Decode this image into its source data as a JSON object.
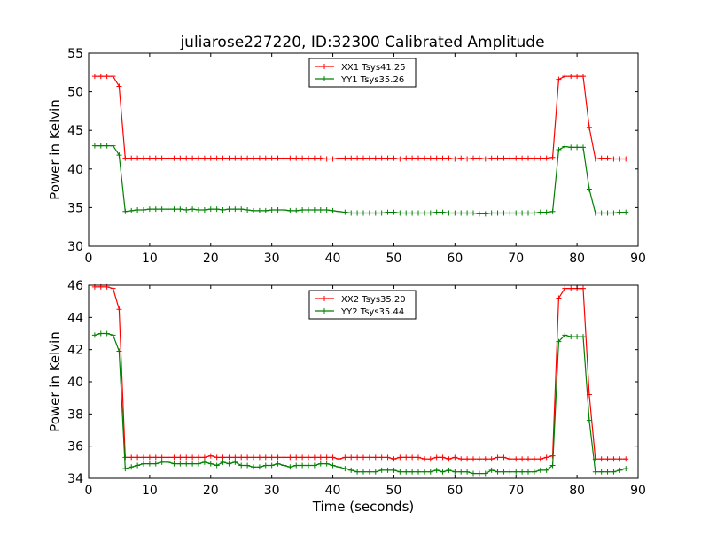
{
  "title": "juliarose227220, ID:32300 Calibrated Amplitude",
  "chart_data": [
    {
      "type": "line",
      "title": "juliarose227220, ID:32300 Calibrated Amplitude",
      "xlabel": "",
      "ylabel": "Power in Kelvin",
      "xlim": [
        0,
        90
      ],
      "ylim": [
        30,
        55
      ],
      "xticks": [
        "0",
        "10",
        "20",
        "30",
        "40",
        "50",
        "60",
        "70",
        "80",
        "90"
      ],
      "yticks": [
        "30",
        "35",
        "40",
        "45",
        "50",
        "55"
      ],
      "grid": false,
      "legend": "top-center",
      "x": [
        1,
        2,
        3,
        4,
        5,
        6,
        7,
        8,
        9,
        10,
        11,
        12,
        13,
        14,
        15,
        16,
        17,
        18,
        19,
        20,
        21,
        22,
        23,
        24,
        25,
        26,
        27,
        28,
        29,
        30,
        31,
        32,
        33,
        34,
        35,
        36,
        37,
        38,
        39,
        40,
        41,
        42,
        43,
        44,
        45,
        46,
        47,
        48,
        49,
        50,
        51,
        52,
        53,
        54,
        55,
        56,
        57,
        58,
        59,
        60,
        61,
        62,
        63,
        64,
        65,
        66,
        67,
        68,
        69,
        70,
        71,
        72,
        73,
        74,
        75,
        76,
        77,
        78,
        79,
        80,
        81,
        82,
        83,
        84,
        85,
        86,
        87,
        88
      ],
      "series": [
        {
          "name": "XX1 Tsys41.25",
          "color": "#ff0000",
          "values": [
            52.0,
            52.0,
            52.0,
            52.0,
            50.7,
            41.4,
            41.4,
            41.4,
            41.4,
            41.4,
            41.4,
            41.4,
            41.4,
            41.4,
            41.4,
            41.4,
            41.4,
            41.4,
            41.4,
            41.4,
            41.4,
            41.4,
            41.4,
            41.4,
            41.4,
            41.4,
            41.4,
            41.4,
            41.4,
            41.4,
            41.4,
            41.4,
            41.4,
            41.4,
            41.4,
            41.4,
            41.4,
            41.4,
            41.3,
            41.3,
            41.4,
            41.4,
            41.4,
            41.4,
            41.4,
            41.4,
            41.4,
            41.4,
            41.4,
            41.4,
            41.3,
            41.4,
            41.4,
            41.4,
            41.4,
            41.4,
            41.4,
            41.4,
            41.4,
            41.3,
            41.4,
            41.3,
            41.4,
            41.4,
            41.3,
            41.4,
            41.4,
            41.4,
            41.4,
            41.4,
            41.4,
            41.4,
            41.4,
            41.4,
            41.4,
            41.5,
            51.6,
            52.0,
            52.0,
            52.0,
            52.0,
            45.4,
            41.3,
            41.4,
            41.4,
            41.3,
            41.3,
            41.3
          ]
        },
        {
          "name": "YY1 Tsys35.26",
          "color": "#008000",
          "values": [
            43.0,
            43.0,
            43.0,
            43.0,
            41.8,
            34.5,
            34.6,
            34.7,
            34.7,
            34.8,
            34.8,
            34.8,
            34.8,
            34.8,
            34.8,
            34.7,
            34.8,
            34.7,
            34.7,
            34.8,
            34.8,
            34.7,
            34.8,
            34.8,
            34.8,
            34.7,
            34.6,
            34.6,
            34.6,
            34.7,
            34.7,
            34.7,
            34.6,
            34.6,
            34.7,
            34.7,
            34.7,
            34.7,
            34.7,
            34.6,
            34.5,
            34.4,
            34.3,
            34.3,
            34.3,
            34.3,
            34.3,
            34.3,
            34.4,
            34.4,
            34.3,
            34.3,
            34.3,
            34.3,
            34.3,
            34.3,
            34.4,
            34.4,
            34.3,
            34.3,
            34.3,
            34.3,
            34.3,
            34.2,
            34.2,
            34.3,
            34.3,
            34.3,
            34.3,
            34.3,
            34.3,
            34.3,
            34.3,
            34.4,
            34.4,
            34.5,
            42.5,
            42.9,
            42.8,
            42.8,
            42.8,
            37.4,
            34.3,
            34.3,
            34.3,
            34.3,
            34.4,
            34.4
          ]
        }
      ]
    },
    {
      "type": "line",
      "title": "",
      "xlabel": "Time (seconds)",
      "ylabel": "Power in Kelvin",
      "xlim": [
        0,
        90
      ],
      "ylim": [
        34,
        46
      ],
      "xticks": [
        "0",
        "10",
        "20",
        "30",
        "40",
        "50",
        "60",
        "70",
        "80",
        "90"
      ],
      "yticks": [
        "34",
        "36",
        "38",
        "40",
        "42",
        "44",
        "46"
      ],
      "grid": false,
      "legend": "top-center",
      "x": [
        1,
        2,
        3,
        4,
        5,
        6,
        7,
        8,
        9,
        10,
        11,
        12,
        13,
        14,
        15,
        16,
        17,
        18,
        19,
        20,
        21,
        22,
        23,
        24,
        25,
        26,
        27,
        28,
        29,
        30,
        31,
        32,
        33,
        34,
        35,
        36,
        37,
        38,
        39,
        40,
        41,
        42,
        43,
        44,
        45,
        46,
        47,
        48,
        49,
        50,
        51,
        52,
        53,
        54,
        55,
        56,
        57,
        58,
        59,
        60,
        61,
        62,
        63,
        64,
        65,
        66,
        67,
        68,
        69,
        70,
        71,
        72,
        73,
        74,
        75,
        76,
        77,
        78,
        79,
        80,
        81,
        82,
        83,
        84,
        85,
        86,
        87,
        88
      ],
      "series": [
        {
          "name": "XX2 Tsys35.20",
          "color": "#ff0000",
          "values": [
            45.9,
            45.9,
            45.9,
            45.8,
            44.5,
            35.3,
            35.3,
            35.3,
            35.3,
            35.3,
            35.3,
            35.3,
            35.3,
            35.3,
            35.3,
            35.3,
            35.3,
            35.3,
            35.3,
            35.4,
            35.3,
            35.3,
            35.3,
            35.3,
            35.3,
            35.3,
            35.3,
            35.3,
            35.3,
            35.3,
            35.3,
            35.3,
            35.3,
            35.3,
            35.3,
            35.3,
            35.3,
            35.3,
            35.3,
            35.3,
            35.2,
            35.3,
            35.3,
            35.3,
            35.3,
            35.3,
            35.3,
            35.3,
            35.3,
            35.2,
            35.3,
            35.3,
            35.3,
            35.3,
            35.2,
            35.2,
            35.3,
            35.3,
            35.2,
            35.3,
            35.2,
            35.2,
            35.2,
            35.2,
            35.2,
            35.2,
            35.3,
            35.3,
            35.2,
            35.2,
            35.2,
            35.2,
            35.2,
            35.2,
            35.3,
            35.4,
            45.2,
            45.8,
            45.8,
            45.8,
            45.8,
            39.2,
            35.2,
            35.2,
            35.2,
            35.2,
            35.2,
            35.2
          ]
        },
        {
          "name": "YY2 Tsys35.44",
          "color": "#008000",
          "values": [
            42.9,
            43.0,
            43.0,
            42.9,
            41.9,
            34.6,
            34.7,
            34.8,
            34.9,
            34.9,
            34.9,
            35.0,
            35.0,
            34.9,
            34.9,
            34.9,
            34.9,
            34.9,
            35.0,
            34.9,
            34.8,
            35.0,
            34.9,
            35.0,
            34.8,
            34.8,
            34.7,
            34.7,
            34.8,
            34.8,
            34.9,
            34.8,
            34.7,
            34.8,
            34.8,
            34.8,
            34.8,
            34.9,
            34.9,
            34.8,
            34.7,
            34.6,
            34.5,
            34.4,
            34.4,
            34.4,
            34.4,
            34.5,
            34.5,
            34.5,
            34.4,
            34.4,
            34.4,
            34.4,
            34.4,
            34.4,
            34.5,
            34.4,
            34.5,
            34.4,
            34.4,
            34.4,
            34.3,
            34.3,
            34.3,
            34.5,
            34.4,
            34.4,
            34.4,
            34.4,
            34.4,
            34.4,
            34.4,
            34.5,
            34.5,
            34.8,
            42.5,
            42.9,
            42.8,
            42.8,
            42.8,
            37.6,
            34.4,
            34.4,
            34.4,
            34.4,
            34.5,
            34.6
          ]
        }
      ]
    }
  ]
}
